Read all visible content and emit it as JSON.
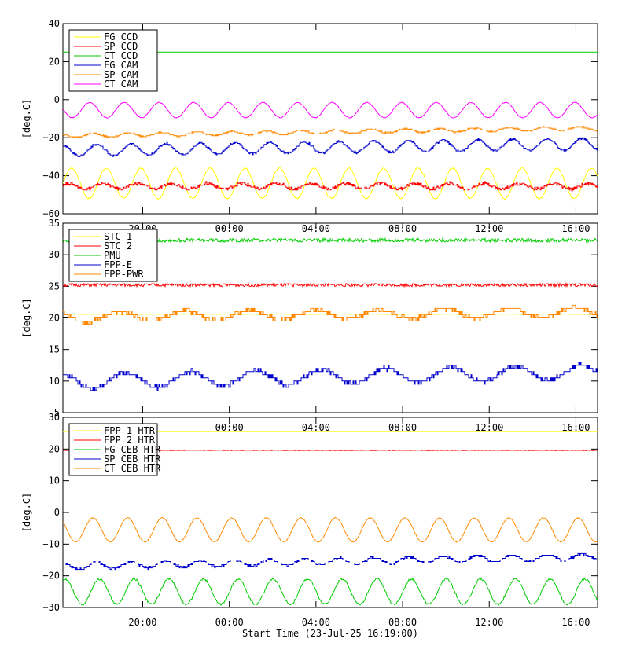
{
  "x_axis": {
    "tick_labels": [
      "20:00",
      "00:00",
      "04:00",
      "08:00",
      "12:00",
      "16:00"
    ],
    "tick_hours": [
      20,
      24,
      28,
      32,
      36,
      40
    ],
    "start_hour": 16.3167,
    "end_hour": 41.0,
    "xlabel": "Start Time (23-Jul-25 16:19:00)"
  },
  "chart_data": [
    {
      "type": "line",
      "ylabel": "[deg.C]",
      "ylim": [
        -60,
        40
      ],
      "yticks": [
        40,
        20,
        0,
        -20,
        -40,
        -60
      ],
      "ytick_labels": [
        "40",
        "20",
        "0",
        "−20",
        "−40",
        "−60"
      ],
      "legend_position": "top-left",
      "series": [
        {
          "name": "FG CCD",
          "color": "#ffff00",
          "mean": -44,
          "amp": 8,
          "period": 1.6,
          "drift": 0,
          "noise": 0.4,
          "style": "sine"
        },
        {
          "name": "SP CCD",
          "color": "#ff0000",
          "mean": -45.5,
          "amp": 1.5,
          "period": 1.6,
          "drift": 0,
          "noise": 0.8,
          "style": "step"
        },
        {
          "name": "CT CCD",
          "color": "#00cc00",
          "mean": 25,
          "amp": 0,
          "period": 1.6,
          "drift": 0,
          "noise": 0,
          "style": "flat"
        },
        {
          "name": "FG CAM",
          "color": "#0000cc",
          "mean": -25,
          "amp": 3,
          "period": 1.6,
          "drift": 3.5,
          "noise": 0.5,
          "style": "step"
        },
        {
          "name": "SP CAM",
          "color": "#ff8800",
          "mean": -17,
          "amp": 1,
          "period": 1.6,
          "drift": 4,
          "noise": 0.4,
          "style": "step"
        },
        {
          "name": "CT CAM",
          "color": "#ff00ff",
          "mean": -5.5,
          "amp": 4,
          "period": 1.6,
          "drift": 0,
          "noise": 0.2,
          "style": "sine"
        }
      ]
    },
    {
      "type": "line",
      "ylabel": "[deg.C]",
      "ylim": [
        5,
        35
      ],
      "yticks": [
        35,
        30,
        25,
        20,
        15,
        10,
        5
      ],
      "ytick_labels": [
        "35",
        "30",
        "25",
        "20",
        "15",
        "10",
        "5"
      ],
      "legend_position": "top-left",
      "series": [
        {
          "name": "STC 1",
          "color": "#ffff00",
          "mean": 20.6,
          "amp": 0,
          "period": 3,
          "drift": 0,
          "noise": 0.05,
          "style": "flat"
        },
        {
          "name": "STC 2",
          "color": "#ff0000",
          "mean": 25.2,
          "amp": 0,
          "period": 3,
          "drift": 0,
          "noise": 0.25,
          "style": "flat"
        },
        {
          "name": "PMU",
          "color": "#00cc00",
          "mean": 32.3,
          "amp": 0,
          "period": 3,
          "drift": 0,
          "noise": 0.3,
          "style": "flat"
        },
        {
          "name": "FPP-E",
          "color": "#0000cc",
          "mean": 10.7,
          "amp": 1.2,
          "period": 3,
          "drift": 1.5,
          "noise": 0.3,
          "style": "step"
        },
        {
          "name": "FPP-PWR",
          "color": "#ff8800",
          "mean": 20.5,
          "amp": 0.8,
          "period": 3,
          "drift": 0.8,
          "noise": 0.3,
          "style": "step"
        }
      ]
    },
    {
      "type": "line",
      "ylabel": "[deg.C]",
      "ylim": [
        -30,
        30
      ],
      "yticks": [
        30,
        20,
        10,
        0,
        -10,
        -20,
        -30
      ],
      "ytick_labels": [
        "30",
        "20",
        "10",
        "0",
        "−10",
        "−20",
        "−30"
      ],
      "legend_position": "top-left",
      "series": [
        {
          "name": "FPP 1 HTR",
          "color": "#ffff00",
          "mean": 25.5,
          "amp": 0,
          "period": 1.6,
          "drift": 0,
          "noise": 0,
          "style": "flat"
        },
        {
          "name": "FPP 2 HTR",
          "color": "#ff0000",
          "mean": 19.6,
          "amp": 0.2,
          "period": 1.6,
          "drift": 0,
          "noise": 0.1,
          "style": "flat"
        },
        {
          "name": "FG CEB HTR",
          "color": "#00cc00",
          "mean": -25,
          "amp": 4,
          "period": 1.6,
          "drift": 0,
          "noise": 0.3,
          "style": "sine"
        },
        {
          "name": "SP CEB HTR",
          "color": "#0000cc",
          "mean": -15.5,
          "amp": 1,
          "period": 1.6,
          "drift": 3,
          "noise": 0.3,
          "style": "step"
        },
        {
          "name": "CT CEB HTR",
          "color": "#ff8800",
          "mean": -5.5,
          "amp": 3.8,
          "period": 1.6,
          "drift": 0,
          "noise": 0.1,
          "style": "sine"
        }
      ]
    }
  ]
}
